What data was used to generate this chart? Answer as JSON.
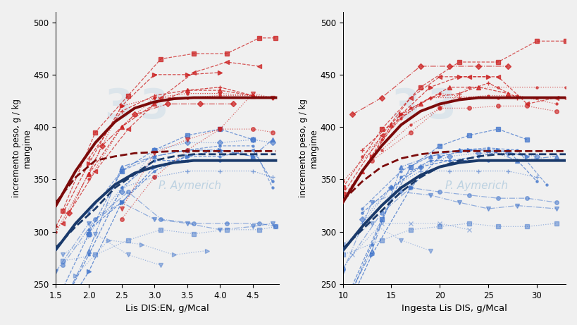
{
  "fig_width": 8.2,
  "fig_height": 4.61,
  "background_color": "#f0f0f0",
  "watermark_text": "P. Aymerich",
  "watermark_color": "#b8cfe0",
  "plot1": {
    "xlabel": "Lis DIS:EN, g/Mcal",
    "ylabel": "incremento peso, g / kg\nmangime",
    "xlim": [
      1.5,
      4.9
    ],
    "ylim": [
      250,
      510
    ],
    "yticks": [
      250,
      300,
      350,
      400,
      450,
      500
    ],
    "xticks": [
      1.5,
      2.0,
      2.5,
      3.0,
      3.5,
      4.0,
      4.5
    ],
    "red_lines": [
      {
        "x": [
          1.6,
          2.1,
          2.6,
          3.1,
          3.6,
          4.1,
          4.6,
          4.85
        ],
        "y": [
          320,
          395,
          430,
          465,
          470,
          470,
          485,
          485
        ],
        "marker": "s",
        "ls": "--",
        "alpha": 0.75
      },
      {
        "x": [
          1.5,
          2.0,
          2.5,
          3.0,
          3.5,
          4.0
        ],
        "y": [
          305,
          365,
          420,
          450,
          450,
          452
        ],
        "marker": ">",
        "ls": "--",
        "alpha": 0.8
      },
      {
        "x": [
          2.0,
          2.5,
          3.0,
          3.5,
          4.0,
          4.5
        ],
        "y": [
          370,
          415,
          430,
          435,
          438,
          430
        ],
        "marker": "+",
        "ls": "--",
        "alpha": 0.8
      },
      {
        "x": [
          2.0,
          2.5,
          3.0,
          3.5,
          4.0,
          4.5
        ],
        "y": [
          355,
          400,
          422,
          435,
          435,
          430
        ],
        "marker": "^",
        "ls": "--",
        "alpha": 0.8
      },
      {
        "x": [
          1.5,
          2.0,
          2.5,
          3.0,
          3.5,
          4.0,
          4.5,
          4.8
        ],
        "y": [
          300,
          355,
          420,
          428,
          432,
          432,
          430,
          428
        ],
        "marker": ".",
        "ls": ":",
        "alpha": 0.8
      },
      {
        "x": [
          2.0,
          2.5,
          3.0,
          3.5,
          4.0,
          4.5,
          4.8
        ],
        "y": [
          350,
          400,
          428,
          428,
          430,
          430,
          428
        ],
        "marker": ".",
        "ls": ":",
        "alpha": 0.7
      },
      {
        "x": [
          1.6,
          2.1,
          2.6,
          3.1,
          3.6,
          4.1,
          4.6
        ],
        "y": [
          308,
          358,
          398,
          428,
          452,
          462,
          458
        ],
        "marker": "<",
        "ls": "--",
        "alpha": 0.75
      },
      {
        "x": [
          1.7,
          2.2,
          2.7,
          3.2,
          3.7,
          4.2
        ],
        "y": [
          318,
          382,
          412,
          422,
          422,
          422
        ],
        "marker": "D",
        "ls": "-.",
        "alpha": 0.75
      },
      {
        "x": [
          2.5,
          3.0,
          3.5,
          4.0,
          4.5,
          4.8
        ],
        "y": [
          322,
          375,
          388,
          398,
          432,
          428
        ],
        "marker": "v",
        "ls": ":",
        "alpha": 0.65
      },
      {
        "x": [
          2.5,
          3.0,
          3.5,
          4.0,
          4.5,
          4.8
        ],
        "y": [
          312,
          352,
          378,
          398,
          398,
          395
        ],
        "marker": "o",
        "ls": ":",
        "alpha": 0.65
      }
    ],
    "blue_lines": [
      {
        "x": [
          1.5,
          2.0,
          2.5,
          3.0,
          3.5,
          4.0
        ],
        "y": [
          218,
          278,
          342,
          368,
          368,
          368
        ],
        "marker": ".",
        "ls": "--",
        "alpha": 0.8
      },
      {
        "x": [
          1.5,
          2.0,
          2.5,
          3.0,
          3.5,
          4.0,
          4.5
        ],
        "y": [
          212,
          262,
          328,
          362,
          372,
          378,
          372
        ],
        "marker": ">",
        "ls": "--",
        "alpha": 0.8
      },
      {
        "x": [
          1.5,
          2.0,
          2.5,
          3.0,
          3.5,
          4.0,
          4.5
        ],
        "y": [
          232,
          298,
          358,
          378,
          392,
          398,
          388
        ],
        "marker": "s",
        "ls": "--",
        "alpha": 0.75
      },
      {
        "x": [
          1.5,
          2.0,
          2.5,
          3.0,
          3.5,
          4.0,
          4.5,
          4.8
        ],
        "y": [
          218,
          282,
          362,
          372,
          378,
          378,
          372,
          388
        ],
        "marker": "^",
        "ls": "-.",
        "alpha": 0.7
      },
      {
        "x": [
          2.0,
          2.5,
          3.0,
          3.5,
          4.0,
          4.5,
          4.8
        ],
        "y": [
          302,
          328,
          358,
          372,
          372,
          378,
          348
        ],
        "marker": ".",
        "ls": "--",
        "alpha": 0.75
      },
      {
        "x": [
          2.0,
          2.5,
          3.0,
          3.5,
          4.0,
          4.5,
          4.8
        ],
        "y": [
          318,
          358,
          372,
          378,
          382,
          382,
          342
        ],
        "marker": ".",
        "ls": "--",
        "alpha": 0.65
      },
      {
        "x": [
          2.0,
          2.5,
          3.0,
          3.5,
          4.0,
          4.5,
          4.8
        ],
        "y": [
          298,
          338,
          378,
          385,
          385,
          388,
          385
        ],
        "marker": "D",
        "ls": ":",
        "alpha": 0.6
      },
      {
        "x": [
          2.0,
          2.5,
          3.0,
          3.5,
          4.0,
          4.5,
          4.8
        ],
        "y": [
          302,
          342,
          352,
          358,
          358,
          358,
          352
        ],
        "marker": "+",
        "ls": ":",
        "alpha": 0.6
      },
      {
        "x": [
          1.5,
          2.0,
          2.5,
          3.0,
          3.5,
          4.0,
          4.5,
          4.8
        ],
        "y": [
          262,
          308,
          328,
          312,
          308,
          302,
          305,
          308
        ],
        "marker": "v",
        "ls": "-.",
        "alpha": 0.55
      },
      {
        "x": [
          1.6,
          2.1,
          2.6,
          3.1,
          3.6,
          4.1,
          4.6,
          4.85
        ],
        "y": [
          268,
          312,
          338,
          312,
          308,
          308,
          308,
          305
        ],
        "marker": "o",
        "ls": "-.",
        "alpha": 0.55
      },
      {
        "x": [
          1.6,
          2.1,
          2.6,
          3.1,
          3.6,
          4.1,
          4.6,
          4.85
        ],
        "y": [
          272,
          278,
          292,
          302,
          298,
          302,
          302,
          305
        ],
        "marker": "s",
        "ls": ":",
        "alpha": 0.5
      },
      {
        "x": [
          1.6,
          2.1,
          2.6,
          3.1
        ],
        "y": [
          278,
          298,
          278,
          268
        ],
        "marker": "v",
        "ls": ":",
        "alpha": 0.45
      },
      {
        "x": [
          1.8,
          2.3,
          2.8,
          3.3,
          3.8
        ],
        "y": [
          258,
          292,
          288,
          278,
          282
        ],
        "marker": ">",
        "ls": ":",
        "alpha": 0.45
      }
    ],
    "model_red_solid": [
      1.5,
      1.8,
      2.1,
      2.4,
      2.7,
      3.0,
      3.3,
      3.6,
      3.9,
      4.2,
      4.5,
      4.85
    ],
    "model_red_solid_y": [
      325,
      358,
      385,
      405,
      418,
      424,
      427,
      428,
      428,
      428,
      428,
      428
    ],
    "model_blue_solid": [
      1.5,
      1.8,
      2.1,
      2.4,
      2.7,
      3.0,
      3.3,
      3.6,
      3.9,
      4.2,
      4.5,
      4.85
    ],
    "model_blue_solid_y": [
      283,
      308,
      328,
      345,
      356,
      362,
      366,
      368,
      368,
      368,
      368,
      368
    ],
    "model_red_dashed": [
      1.5,
      1.8,
      2.1,
      2.4,
      2.7,
      3.0,
      3.3,
      3.6,
      3.9,
      4.2,
      4.5,
      4.85
    ],
    "model_red_dashed_y": [
      328,
      352,
      368,
      372,
      375,
      376,
      377,
      377,
      377,
      377,
      377,
      377
    ],
    "model_blue_dashed": [
      1.5,
      1.8,
      2.1,
      2.4,
      2.7,
      3.0,
      3.3,
      3.6,
      3.9,
      4.2,
      4.5,
      4.85
    ],
    "model_blue_dashed_y": [
      285,
      305,
      322,
      342,
      355,
      368,
      372,
      374,
      374,
      374,
      374,
      374
    ]
  },
  "plot2": {
    "xlabel": "Ingesta Lis DIS, g/Mcal",
    "ylabel": "incremento peso, g / kg\nmangime",
    "xlim": [
      10,
      33
    ],
    "ylim": [
      250,
      510
    ],
    "yticks": [
      250,
      300,
      350,
      400,
      450,
      500
    ],
    "xticks": [
      10,
      15,
      20,
      25,
      30
    ],
    "red_lines": [
      {
        "x": [
          10,
          14,
          18,
          22,
          26,
          30,
          33
        ],
        "y": [
          342,
          398,
          438,
          462,
          462,
          482,
          482
        ],
        "marker": "s",
        "ls": "--",
        "alpha": 0.75
      },
      {
        "x": [
          10,
          13,
          16,
          19,
          22,
          25
        ],
        "y": [
          332,
          372,
          412,
          438,
          448,
          448
        ],
        "marker": ">",
        "ls": "--",
        "alpha": 0.8
      },
      {
        "x": [
          12,
          16,
          19,
          22,
          25,
          28
        ],
        "y": [
          378,
          412,
          428,
          432,
          442,
          428
        ],
        "marker": "+",
        "ls": "--",
        "alpha": 0.8
      },
      {
        "x": [
          12,
          15,
          18,
          21,
          24,
          27
        ],
        "y": [
          358,
          402,
          422,
          438,
          438,
          432
        ],
        "marker": "^",
        "ls": "--",
        "alpha": 0.8
      },
      {
        "x": [
          10,
          14,
          17,
          20,
          23,
          26,
          30,
          33
        ],
        "y": [
          348,
          388,
          418,
          432,
          428,
          428,
          428,
          428
        ],
        "marker": ".",
        "ls": ":",
        "alpha": 0.8
      },
      {
        "x": [
          12,
          16,
          19,
          22,
          25,
          28,
          32
        ],
        "y": [
          372,
          408,
          428,
          428,
          430,
          430,
          422
        ],
        "marker": ".",
        "ls": ":",
        "alpha": 0.7
      },
      {
        "x": [
          10,
          14,
          17,
          20,
          23,
          26,
          29,
          32
        ],
        "y": [
          336,
          392,
          428,
          448,
          448,
          448,
          422,
          428
        ],
        "marker": "<",
        "ls": "--",
        "alpha": 0.75
      },
      {
        "x": [
          11,
          14,
          18,
          21,
          24,
          27
        ],
        "y": [
          412,
          428,
          458,
          458,
          458,
          458
        ],
        "marker": "D",
        "ls": "-.",
        "alpha": 0.75
      },
      {
        "x": [
          14,
          17,
          20,
          23,
          26,
          30,
          33
        ],
        "y": [
          378,
          402,
          418,
          438,
          438,
          438,
          438
        ],
        "marker": ".",
        "ls": ":",
        "alpha": 0.65
      },
      {
        "x": [
          13,
          17,
          20,
          23,
          26,
          29,
          32
        ],
        "y": [
          368,
          395,
          418,
          418,
          420,
          420,
          415
        ],
        "marker": "o",
        "ls": ":",
        "alpha": 0.65
      }
    ],
    "blue_lines": [
      {
        "x": [
          10,
          13,
          16,
          19,
          22,
          25,
          28
        ],
        "y": [
          222,
          288,
          352,
          368,
          368,
          368,
          368
        ],
        "marker": ".",
        "ls": "--",
        "alpha": 0.8
      },
      {
        "x": [
          10,
          13,
          17,
          20,
          23,
          26,
          29
        ],
        "y": [
          218,
          278,
          342,
          372,
          378,
          378,
          372
        ],
        "marker": ">",
        "ls": "--",
        "alpha": 0.8
      },
      {
        "x": [
          10,
          14,
          17,
          20,
          23,
          26,
          29
        ],
        "y": [
          228,
          312,
          362,
          382,
          392,
          398,
          388
        ],
        "marker": "s",
        "ls": "--",
        "alpha": 0.75
      },
      {
        "x": [
          10,
          13,
          16,
          19,
          22,
          25,
          28,
          32
        ],
        "y": [
          228,
          282,
          362,
          372,
          378,
          378,
          368,
          372
        ],
        "marker": "^",
        "ls": "-.",
        "alpha": 0.7
      },
      {
        "x": [
          12,
          15,
          18,
          21,
          24,
          27,
          30
        ],
        "y": [
          318,
          342,
          362,
          368,
          372,
          378,
          348
        ],
        "marker": ".",
        "ls": "--",
        "alpha": 0.75
      },
      {
        "x": [
          12,
          16,
          19,
          22,
          25,
          28,
          31
        ],
        "y": [
          322,
          358,
          372,
          378,
          380,
          378,
          345
        ],
        "marker": ".",
        "ls": "--",
        "alpha": 0.65
      },
      {
        "x": [
          12,
          15,
          18,
          21,
          24,
          27,
          30
        ],
        "y": [
          312,
          342,
          362,
          372,
          375,
          375,
          372
        ],
        "marker": "D",
        "ls": ":",
        "alpha": 0.6
      },
      {
        "x": [
          12,
          15,
          18,
          21,
          24,
          27,
          30
        ],
        "y": [
          308,
          342,
          358,
          358,
          358,
          358,
          352
        ],
        "marker": "+",
        "ls": ":",
        "alpha": 0.6
      },
      {
        "x": [
          10,
          13,
          16,
          19,
          22,
          25,
          28,
          32
        ],
        "y": [
          262,
          328,
          338,
          335,
          328,
          322,
          325,
          322
        ],
        "marker": "v",
        "ls": "-.",
        "alpha": 0.55
      },
      {
        "x": [
          10,
          14,
          17,
          20,
          23,
          26,
          29,
          32
        ],
        "y": [
          265,
          318,
          342,
          338,
          335,
          332,
          332,
          328
        ],
        "marker": "o",
        "ls": "-.",
        "alpha": 0.55
      },
      {
        "x": [
          10,
          14,
          17,
          20,
          23,
          26,
          29,
          32
        ],
        "y": [
          278,
          292,
          302,
          305,
          308,
          305,
          305,
          308
        ],
        "marker": "s",
        "ls": ":",
        "alpha": 0.5
      },
      {
        "x": [
          10,
          13,
          16,
          19
        ],
        "y": [
          288,
          308,
          292,
          282
        ],
        "marker": "v",
        "ls": ":",
        "alpha": 0.45
      },
      {
        "x": [
          11,
          14,
          17,
          20,
          23
        ],
        "y": [
          278,
          308,
          308,
          308,
          302
        ],
        "marker": "x",
        "ls": ":",
        "alpha": 0.45
      }
    ],
    "model_red_solid": [
      10,
      12,
      14,
      16,
      18,
      20,
      22,
      24,
      26,
      28,
      30,
      33
    ],
    "model_red_solid_y": [
      328,
      358,
      382,
      402,
      415,
      422,
      426,
      428,
      428,
      428,
      428,
      428
    ],
    "model_blue_solid": [
      10,
      12,
      14,
      16,
      18,
      20,
      22,
      24,
      26,
      28,
      30,
      33
    ],
    "model_blue_solid_y": [
      282,
      305,
      325,
      342,
      354,
      362,
      366,
      368,
      368,
      368,
      368,
      368
    ],
    "model_red_dashed": [
      10,
      12,
      14,
      16,
      18,
      20,
      22,
      24,
      26,
      28,
      30,
      33
    ],
    "model_red_dashed_y": [
      330,
      348,
      362,
      370,
      374,
      376,
      377,
      377,
      377,
      377,
      377,
      377
    ],
    "model_blue_dashed": [
      10,
      12,
      14,
      16,
      18,
      20,
      22,
      24,
      26,
      28,
      30,
      33
    ],
    "model_blue_dashed_y": [
      284,
      302,
      320,
      338,
      352,
      362,
      368,
      372,
      374,
      374,
      374,
      374
    ]
  },
  "red_color": "#cc2222",
  "blue_color": "#4477cc",
  "red_model_color": "#7b0a0a",
  "blue_model_color": "#1a3a6b",
  "model_lw": 2.8,
  "model_dashed_lw": 2.0
}
